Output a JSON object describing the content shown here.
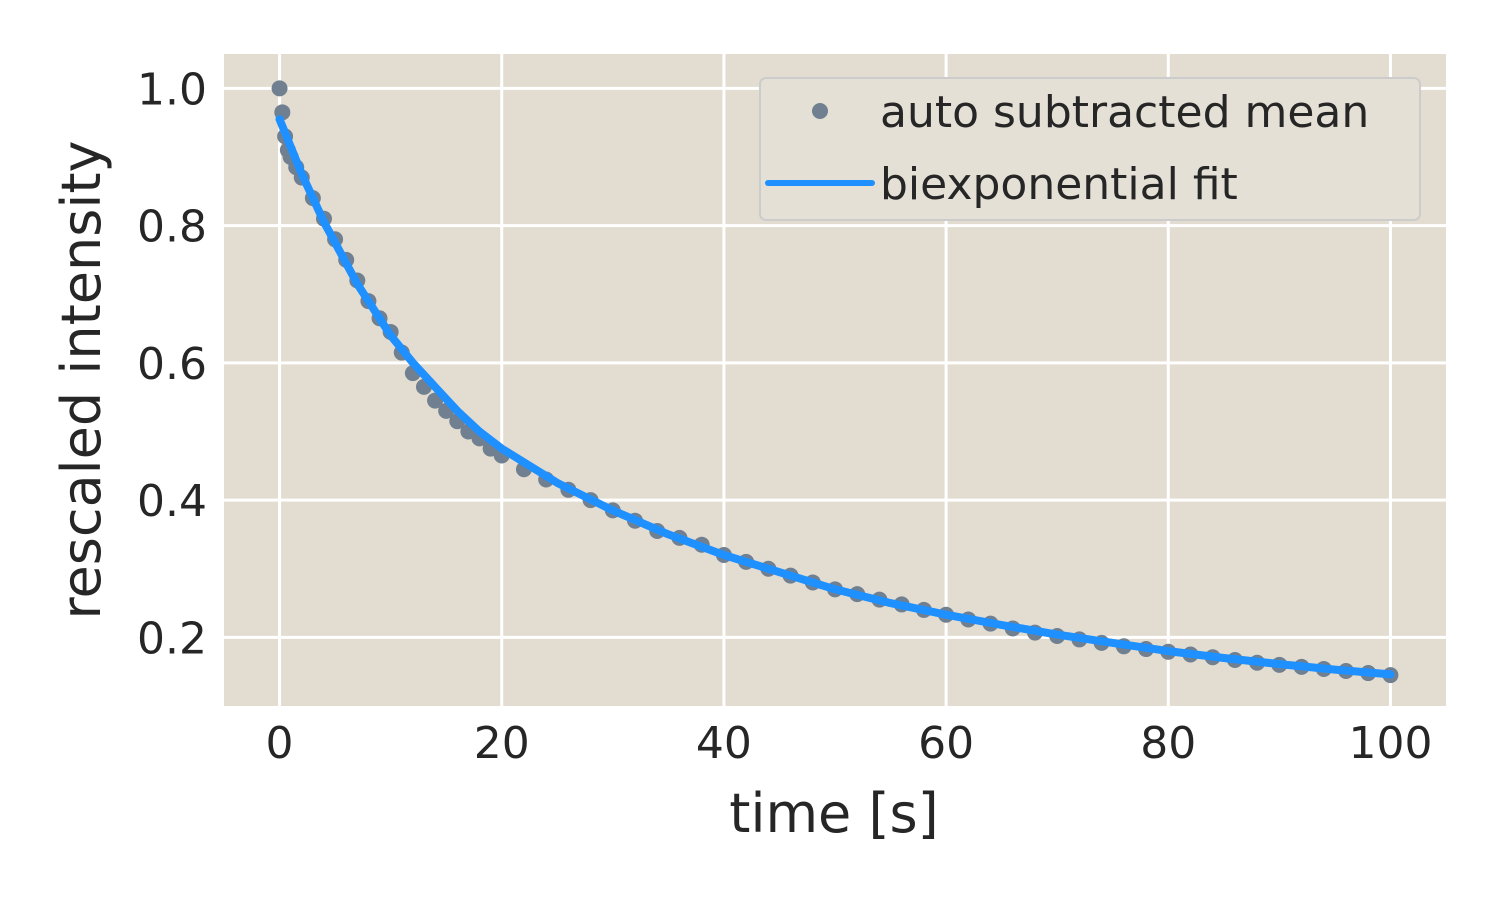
{
  "chart_data": {
    "type": "line",
    "title": "",
    "xlabel": "time [s]",
    "ylabel": "rescaled intensity",
    "xlim": [
      -5,
      105
    ],
    "ylim": [
      0.1,
      1.05
    ],
    "xticks": [
      0,
      20,
      40,
      60,
      80,
      100
    ],
    "yticks": [
      0.2,
      0.4,
      0.6,
      0.8,
      1.0
    ],
    "xtick_labels": [
      "0",
      "20",
      "40",
      "60",
      "80",
      "100"
    ],
    "ytick_labels": [
      "0.2",
      "0.4",
      "0.6",
      "0.8",
      "1.0"
    ],
    "grid": true,
    "legend_position": "top-right",
    "background_color": "#e3ddd1",
    "series": [
      {
        "name": "auto subtracted mean",
        "kind": "scatter",
        "color": "#708090",
        "x": [
          0,
          0.25,
          0.5,
          0.75,
          1,
          1.5,
          2,
          3,
          4,
          5,
          6,
          7,
          8,
          9,
          10,
          11,
          12,
          13,
          14,
          15,
          16,
          17,
          18,
          19,
          20,
          22,
          24,
          26,
          28,
          30,
          32,
          34,
          36,
          38,
          40,
          42,
          44,
          46,
          48,
          50,
          52,
          54,
          56,
          58,
          60,
          62,
          64,
          66,
          68,
          70,
          72,
          74,
          76,
          78,
          80,
          82,
          84,
          86,
          88,
          90,
          92,
          94,
          96,
          98,
          100
        ],
        "y": [
          1.0,
          0.965,
          0.93,
          0.91,
          0.9,
          0.885,
          0.87,
          0.84,
          0.81,
          0.78,
          0.75,
          0.72,
          0.69,
          0.665,
          0.645,
          0.615,
          0.585,
          0.565,
          0.545,
          0.53,
          0.515,
          0.5,
          0.49,
          0.475,
          0.465,
          0.445,
          0.43,
          0.415,
          0.4,
          0.385,
          0.37,
          0.355,
          0.345,
          0.335,
          0.32,
          0.31,
          0.3,
          0.29,
          0.28,
          0.27,
          0.263,
          0.255,
          0.248,
          0.24,
          0.233,
          0.226,
          0.22,
          0.213,
          0.207,
          0.202,
          0.197,
          0.192,
          0.187,
          0.183,
          0.179,
          0.175,
          0.171,
          0.167,
          0.163,
          0.16,
          0.157,
          0.154,
          0.151,
          0.148,
          0.145
        ]
      },
      {
        "name": "biexponential fit",
        "kind": "line",
        "color": "#1e90ff",
        "x": [
          0,
          0.5,
          1,
          2,
          3,
          4,
          5,
          6,
          7,
          8,
          9,
          10,
          12,
          14,
          16,
          18,
          20,
          25,
          30,
          35,
          40,
          45,
          50,
          55,
          60,
          65,
          70,
          75,
          80,
          85,
          90,
          95,
          100
        ],
        "y": [
          0.955,
          0.935,
          0.915,
          0.875,
          0.84,
          0.805,
          0.775,
          0.745,
          0.715,
          0.69,
          0.665,
          0.64,
          0.6,
          0.565,
          0.53,
          0.5,
          0.475,
          0.425,
          0.385,
          0.35,
          0.32,
          0.295,
          0.27,
          0.25,
          0.233,
          0.218,
          0.204,
          0.192,
          0.18,
          0.17,
          0.161,
          0.153,
          0.146
        ]
      }
    ]
  }
}
